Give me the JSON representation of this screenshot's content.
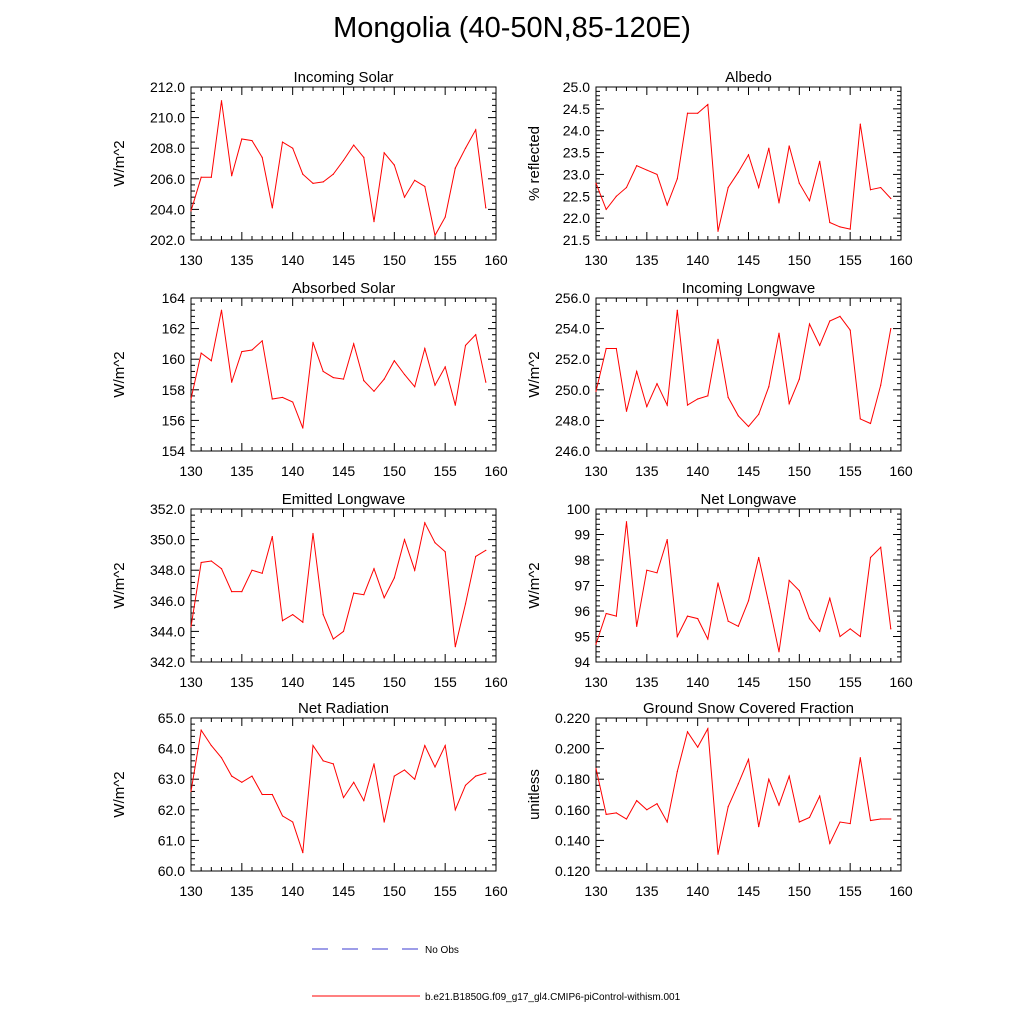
{
  "figure_title": "Mongolia (40-50N,85-120E)",
  "legend": {
    "items": [
      {
        "label": "No Obs",
        "color": "#3b3bd0",
        "style": "dashed"
      },
      {
        "label": "b.e21.B1850G.f09_g17_gl4.CMIP6-piControl-withism.001",
        "color": "#ff0000",
        "style": "solid"
      }
    ]
  },
  "chart_data": [
    {
      "type": "line",
      "title": "Incoming Solar",
      "ylabel": "W/m^2",
      "xlim": [
        130,
        160
      ],
      "ylim": [
        202,
        212
      ],
      "xticks": [
        "130",
        "135",
        "140",
        "145",
        "150",
        "155",
        "160"
      ],
      "yticks": [
        "202.0",
        "204.0",
        "206.0",
        "208.0",
        "210.0",
        "212.0"
      ],
      "x": [
        130,
        131,
        132,
        133,
        134,
        135,
        136,
        137,
        138,
        139,
        140,
        141,
        142,
        143,
        144,
        145,
        146,
        147,
        148,
        149,
        150,
        151,
        152,
        153,
        154,
        155,
        156,
        157,
        158,
        159
      ],
      "series": [
        {
          "color": "#ff0000",
          "values": [
            203.9,
            206.1,
            206.1,
            211.1,
            206.2,
            208.6,
            208.5,
            207.4,
            204.1,
            208.4,
            208.0,
            206.3,
            205.7,
            205.8,
            206.3,
            207.2,
            208.2,
            207.4,
            203.2,
            207.7,
            206.9,
            204.8,
            205.9,
            205.5,
            202.3,
            203.5,
            206.7,
            208.0,
            209.2,
            204.1
          ]
        }
      ]
    },
    {
      "type": "line",
      "title": "Albedo",
      "ylabel": "% reflected",
      "xlim": [
        130,
        160
      ],
      "ylim": [
        21.5,
        25.0
      ],
      "xticks": [
        "130",
        "135",
        "140",
        "145",
        "150",
        "155",
        "160"
      ],
      "yticks": [
        "21.5",
        "22.0",
        "22.5",
        "23.0",
        "23.5",
        "24.0",
        "24.5",
        "25.0"
      ],
      "x": [
        130,
        131,
        132,
        133,
        134,
        135,
        136,
        137,
        138,
        139,
        140,
        141,
        142,
        143,
        144,
        145,
        146,
        147,
        148,
        149,
        150,
        151,
        152,
        153,
        154,
        155,
        156,
        157,
        158,
        159
      ],
      "series": [
        {
          "color": "#ff0000",
          "values": [
            22.8,
            22.2,
            22.5,
            22.7,
            23.2,
            23.1,
            23.0,
            22.3,
            22.9,
            24.4,
            24.4,
            24.6,
            21.7,
            22.7,
            23.05,
            23.45,
            22.7,
            23.6,
            22.35,
            23.65,
            22.8,
            22.4,
            23.3,
            21.9,
            21.8,
            21.75,
            24.15,
            22.65,
            22.7,
            22.45
          ]
        }
      ]
    },
    {
      "type": "line",
      "title": "Absorbed Solar",
      "ylabel": "W/m^2",
      "xlim": [
        130,
        160
      ],
      "ylim": [
        154,
        164
      ],
      "xticks": [
        "130",
        "135",
        "140",
        "145",
        "150",
        "155",
        "160"
      ],
      "yticks": [
        "154",
        "156",
        "158",
        "160",
        "162",
        "164"
      ],
      "x": [
        130,
        131,
        132,
        133,
        134,
        135,
        136,
        137,
        138,
        139,
        140,
        141,
        142,
        143,
        144,
        145,
        146,
        147,
        148,
        149,
        150,
        151,
        152,
        153,
        154,
        155,
        156,
        157,
        158,
        159
      ],
      "series": [
        {
          "color": "#ff0000",
          "values": [
            157.4,
            160.4,
            159.9,
            163.2,
            158.5,
            160.5,
            160.6,
            161.2,
            157.4,
            157.5,
            157.2,
            155.5,
            161.1,
            159.2,
            158.8,
            158.7,
            161.0,
            158.6,
            157.9,
            158.7,
            159.9,
            159.0,
            158.2,
            160.7,
            158.3,
            159.5,
            157.0,
            160.9,
            161.6,
            158.5
          ]
        }
      ]
    },
    {
      "type": "line",
      "title": "Incoming Longwave",
      "ylabel": "W/m^2",
      "xlim": [
        130,
        160
      ],
      "ylim": [
        246,
        256
      ],
      "xticks": [
        "130",
        "135",
        "140",
        "145",
        "150",
        "155",
        "160"
      ],
      "yticks": [
        "246.0",
        "248.0",
        "250.0",
        "252.0",
        "254.0",
        "256.0"
      ],
      "x": [
        130,
        131,
        132,
        133,
        134,
        135,
        136,
        137,
        138,
        139,
        140,
        141,
        142,
        143,
        144,
        145,
        146,
        147,
        148,
        149,
        150,
        151,
        152,
        153,
        154,
        155,
        156,
        157,
        158,
        159
      ],
      "series": [
        {
          "color": "#ff0000",
          "values": [
            249.9,
            252.7,
            252.7,
            248.6,
            251.2,
            248.9,
            250.4,
            249.0,
            255.2,
            249.0,
            249.4,
            249.6,
            253.3,
            249.5,
            248.3,
            247.6,
            248.4,
            250.2,
            253.7,
            249.1,
            250.7,
            254.3,
            252.9,
            254.5,
            254.8,
            253.9,
            248.1,
            247.8,
            250.3,
            254.0
          ]
        }
      ]
    },
    {
      "type": "line",
      "title": "Emitted Longwave",
      "ylabel": "W/m^2",
      "xlim": [
        130,
        160
      ],
      "ylim": [
        342,
        352
      ],
      "xticks": [
        "130",
        "135",
        "140",
        "145",
        "150",
        "155",
        "160"
      ],
      "yticks": [
        "342.0",
        "344.0",
        "346.0",
        "348.0",
        "350.0",
        "352.0"
      ],
      "x": [
        130,
        131,
        132,
        133,
        134,
        135,
        136,
        137,
        138,
        139,
        140,
        141,
        142,
        143,
        144,
        145,
        146,
        147,
        148,
        149,
        150,
        151,
        152,
        153,
        154,
        155,
        156,
        157,
        158,
        159
      ],
      "series": [
        {
          "color": "#ff0000",
          "values": [
            344.3,
            348.5,
            348.6,
            348.1,
            346.6,
            346.6,
            348.0,
            347.8,
            350.2,
            344.7,
            345.1,
            344.6,
            350.4,
            345.1,
            343.5,
            344.0,
            346.5,
            346.4,
            348.1,
            346.2,
            347.5,
            350.0,
            348.0,
            351.1,
            349.8,
            349.2,
            343.0,
            345.8,
            348.9,
            349.3
          ]
        }
      ]
    },
    {
      "type": "line",
      "title": "Net Longwave",
      "ylabel": "W/m^2",
      "xlim": [
        130,
        160
      ],
      "ylim": [
        94,
        100
      ],
      "xticks": [
        "130",
        "135",
        "140",
        "145",
        "150",
        "155",
        "160"
      ],
      "yticks": [
        "94",
        "95",
        "96",
        "97",
        "98",
        "99",
        "100"
      ],
      "x": [
        130,
        131,
        132,
        133,
        134,
        135,
        136,
        137,
        138,
        139,
        140,
        141,
        142,
        143,
        144,
        145,
        146,
        147,
        148,
        149,
        150,
        151,
        152,
        153,
        154,
        155,
        156,
        157,
        158,
        159
      ],
      "series": [
        {
          "color": "#ff0000",
          "values": [
            94.7,
            95.9,
            95.8,
            99.5,
            95.4,
            97.6,
            97.5,
            98.8,
            95.0,
            95.8,
            95.7,
            94.9,
            97.1,
            95.6,
            95.4,
            96.4,
            98.1,
            96.3,
            94.4,
            97.2,
            96.8,
            95.7,
            95.2,
            96.5,
            95.0,
            95.3,
            95.0,
            98.1,
            98.5,
            95.3
          ]
        }
      ]
    },
    {
      "type": "line",
      "title": "Net Radiation",
      "ylabel": "W/m^2",
      "xlim": [
        130,
        160
      ],
      "ylim": [
        60,
        65
      ],
      "xticks": [
        "130",
        "135",
        "140",
        "145",
        "150",
        "155",
        "160"
      ],
      "yticks": [
        "60.0",
        "61.0",
        "62.0",
        "63.0",
        "64.0",
        "65.0"
      ],
      "x": [
        130,
        131,
        132,
        133,
        134,
        135,
        136,
        137,
        138,
        139,
        140,
        141,
        142,
        143,
        144,
        145,
        146,
        147,
        148,
        149,
        150,
        151,
        152,
        153,
        154,
        155,
        156,
        157,
        158,
        159
      ],
      "series": [
        {
          "color": "#ff0000",
          "values": [
            62.6,
            64.6,
            64.1,
            63.7,
            63.1,
            62.9,
            63.1,
            62.5,
            62.5,
            61.8,
            61.6,
            60.6,
            64.1,
            63.6,
            63.5,
            62.4,
            62.9,
            62.3,
            63.5,
            61.6,
            63.1,
            63.3,
            63.0,
            64.1,
            63.4,
            64.1,
            62.0,
            62.8,
            63.1,
            63.2
          ]
        }
      ]
    },
    {
      "type": "line",
      "title": "Ground Snow Covered Fraction",
      "ylabel": "unitless",
      "xlim": [
        130,
        160
      ],
      "ylim": [
        0.12,
        0.22
      ],
      "xticks": [
        "130",
        "135",
        "140",
        "145",
        "150",
        "155",
        "160"
      ],
      "yticks": [
        "0.120",
        "0.140",
        "0.160",
        "0.180",
        "0.200",
        "0.220"
      ],
      "x": [
        130,
        131,
        132,
        133,
        134,
        135,
        136,
        137,
        138,
        139,
        140,
        141,
        142,
        143,
        144,
        145,
        146,
        147,
        148,
        149,
        150,
        151,
        152,
        153,
        154,
        155,
        156,
        157,
        158,
        159
      ],
      "series": [
        {
          "color": "#ff0000",
          "values": [
            0.187,
            0.157,
            0.158,
            0.154,
            0.166,
            0.16,
            0.164,
            0.152,
            0.185,
            0.211,
            0.201,
            0.213,
            0.131,
            0.162,
            0.177,
            0.193,
            0.149,
            0.18,
            0.163,
            0.182,
            0.152,
            0.155,
            0.169,
            0.138,
            0.152,
            0.151,
            0.194,
            0.153,
            0.154,
            0.154
          ]
        }
      ]
    }
  ]
}
